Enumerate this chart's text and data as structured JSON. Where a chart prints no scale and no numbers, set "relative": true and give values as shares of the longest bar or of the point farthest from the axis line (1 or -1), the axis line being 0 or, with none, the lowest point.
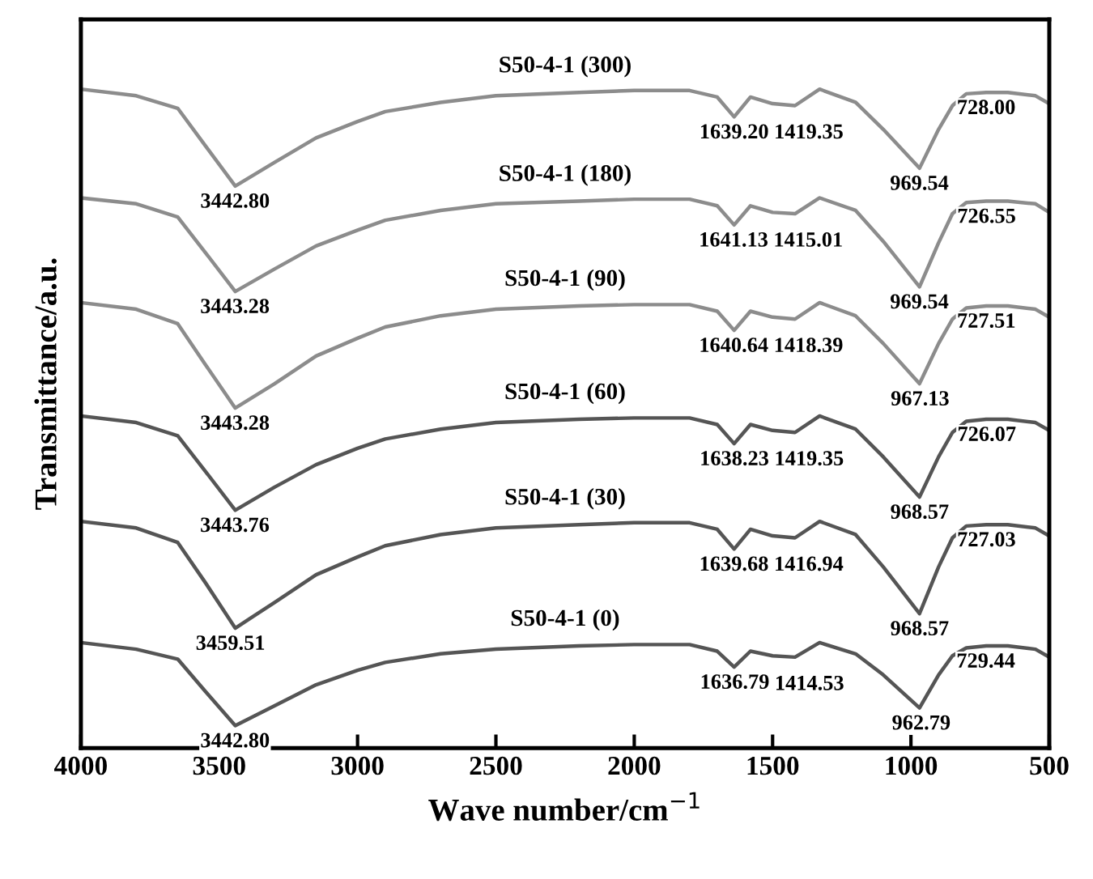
{
  "chart_data": {
    "type": "line",
    "relative": true,
    "xlabel": "Wave number/cm$^{−1}$",
    "ylabel": "Transmittance/a.u.",
    "x": [
      4000,
      3800,
      3650,
      3550,
      3442,
      3300,
      3150,
      3000,
      2900,
      2700,
      2500,
      2200,
      2000,
      1800,
      1700,
      1639,
      1580,
      1500,
      1419,
      1330,
      1200,
      1100,
      969,
      900,
      850,
      800,
      728,
      650,
      550,
      500
    ],
    "xlim": [
      4000,
      500
    ],
    "xticks": [
      4000,
      3500,
      3000,
      2500,
      2000,
      1500,
      1000,
      500
    ],
    "grid": false,
    "legend": false,
    "marker": "none",
    "line_style": "solid",
    "tick_labels": "x",
    "series": [
      {
        "name": "S50-4-1 (300)",
        "color": "#8c8c8c",
        "values": [
          1,
          0.99,
          0.971,
          0.914,
          0.853,
          0.889,
          0.926,
          0.951,
          0.966,
          0.98,
          0.99,
          0.995,
          0.998,
          0.998,
          0.988,
          0.958,
          0.988,
          0.978,
          0.975,
          1,
          0.98,
          0.939,
          0.88,
          0.939,
          0.975,
          0.993,
          0.995,
          0.995,
          0.99,
          0.978
        ]
      },
      {
        "name": "S50-4-1 (180)",
        "color": "#8c8c8c",
        "values": [
          0.835,
          0.826,
          0.806,
          0.752,
          0.693,
          0.727,
          0.762,
          0.786,
          0.801,
          0.816,
          0.826,
          0.83,
          0.833,
          0.833,
          0.823,
          0.794,
          0.823,
          0.813,
          0.811,
          0.835,
          0.816,
          0.769,
          0.7,
          0.767,
          0.811,
          0.828,
          0.83,
          0.83,
          0.826,
          0.813
        ]
      },
      {
        "name": "S50-4-1 (90)",
        "color": "#8c8c8c",
        "values": [
          0.676,
          0.666,
          0.644,
          0.582,
          0.516,
          0.553,
          0.595,
          0.622,
          0.639,
          0.656,
          0.666,
          0.671,
          0.673,
          0.673,
          0.663,
          0.634,
          0.663,
          0.654,
          0.651,
          0.676,
          0.656,
          0.614,
          0.553,
          0.614,
          0.651,
          0.668,
          0.671,
          0.671,
          0.666,
          0.654
        ]
      },
      {
        "name": "S50-4-1 (60)",
        "color": "#555555",
        "values": [
          0.504,
          0.494,
          0.474,
          0.42,
          0.361,
          0.396,
          0.43,
          0.455,
          0.469,
          0.484,
          0.494,
          0.499,
          0.501,
          0.501,
          0.491,
          0.462,
          0.491,
          0.482,
          0.479,
          0.504,
          0.484,
          0.442,
          0.381,
          0.442,
          0.479,
          0.496,
          0.499,
          0.499,
          0.494,
          0.482
        ]
      },
      {
        "name": "S50-4-1 (30)",
        "color": "#555555",
        "values": [
          0.344,
          0.334,
          0.312,
          0.251,
          0.182,
          0.221,
          0.263,
          0.29,
          0.307,
          0.324,
          0.334,
          0.339,
          0.342,
          0.342,
          0.332,
          0.302,
          0.332,
          0.322,
          0.319,
          0.344,
          0.324,
          0.275,
          0.204,
          0.275,
          0.319,
          0.337,
          0.339,
          0.339,
          0.334,
          0.322
        ]
      },
      {
        "name": "S50-4-1 (0)",
        "color": "#555555",
        "values": [
          0.16,
          0.15,
          0.135,
          0.086,
          0.034,
          0.064,
          0.096,
          0.118,
          0.13,
          0.143,
          0.15,
          0.155,
          0.157,
          0.157,
          0.147,
          0.123,
          0.147,
          0.14,
          0.138,
          0.16,
          0.143,
          0.111,
          0.061,
          0.111,
          0.14,
          0.152,
          0.155,
          0.155,
          0.15,
          0.138
        ]
      }
    ],
    "annotations": [
      {
        "text": "3442.80",
        "x": 3442.8,
        "y": 0.853
      },
      {
        "text": "1639.20",
        "x": 1639.2,
        "y": 0.958
      },
      {
        "text": "1419.35",
        "x": 1419.35,
        "y": 0.975
      },
      {
        "text": "969.54",
        "x": 969.54,
        "y": 0.88
      },
      {
        "text": "728.00",
        "x": 728.0,
        "y": 0.995
      },
      {
        "text": "3443.28",
        "x": 3443.28,
        "y": 0.693
      },
      {
        "text": "1641.13",
        "x": 1641.13,
        "y": 0.794
      },
      {
        "text": "1415.01",
        "x": 1415.01,
        "y": 0.811
      },
      {
        "text": "969.54",
        "x": 969.54,
        "y": 0.7
      },
      {
        "text": "726.55",
        "x": 726.55,
        "y": 0.83
      },
      {
        "text": "3443.28",
        "x": 3443.28,
        "y": 0.516
      },
      {
        "text": "1640.64",
        "x": 1640.64,
        "y": 0.634
      },
      {
        "text": "1418.39",
        "x": 1418.39,
        "y": 0.651
      },
      {
        "text": "967.13",
        "x": 967.13,
        "y": 0.553
      },
      {
        "text": "727.51",
        "x": 727.51,
        "y": 0.671
      },
      {
        "text": "3443.76",
        "x": 3443.76,
        "y": 0.361
      },
      {
        "text": "1638.23",
        "x": 1638.23,
        "y": 0.462
      },
      {
        "text": "1419.35",
        "x": 1419.35,
        "y": 0.479
      },
      {
        "text": "968.57",
        "x": 968.57,
        "y": 0.381
      },
      {
        "text": "726.07",
        "x": 726.07,
        "y": 0.499
      },
      {
        "text": "3459.51",
        "x": 3459.51,
        "y": 0.182
      },
      {
        "text": "1639.68",
        "x": 1639.68,
        "y": 0.302
      },
      {
        "text": "1416.94",
        "x": 1416.94,
        "y": 0.319
      },
      {
        "text": "968.57",
        "x": 968.57,
        "y": 0.204
      },
      {
        "text": "727.03",
        "x": 727.03,
        "y": 0.339
      },
      {
        "text": "3442.80",
        "x": 3442.8,
        "y": 0.034
      },
      {
        "text": "1636.79",
        "x": 1636.79,
        "y": 0.123
      },
      {
        "text": "1414.53",
        "x": 1414.53,
        "y": 0.138
      },
      {
        "text": "962.79",
        "x": 962.79,
        "y": 0.061
      },
      {
        "text": "729.44",
        "x": 729.44,
        "y": 0.155
      }
    ]
  }
}
